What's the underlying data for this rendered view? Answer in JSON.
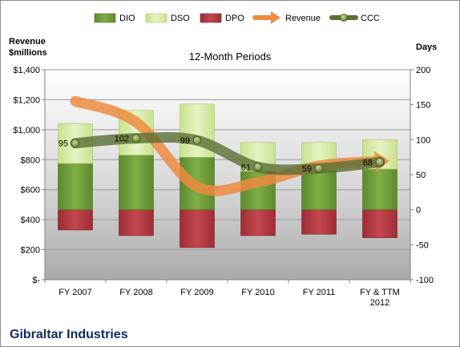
{
  "chart_data": {
    "type": "bar",
    "title": "12-Month Periods",
    "company": "Gibraltar Industries",
    "ylabel_left_line1": "Revenue",
    "ylabel_left_line2": "$millions",
    "ylabel_right": "Days",
    "categories": [
      "FY 2007",
      "FY 2008",
      "FY 2009",
      "FY 2010",
      "FY 2011",
      "FY & TTM 2012"
    ],
    "categories_display": [
      [
        "FY 2007"
      ],
      [
        "FY 2008"
      ],
      [
        "FY 2009"
      ],
      [
        "FY 2010"
      ],
      [
        "FY 2011"
      ],
      [
        "FY & TTM",
        "2012"
      ]
    ],
    "left_axis": {
      "min": 0,
      "max": 1400,
      "step": 200,
      "tick_labels": [
        "$-",
        "$200",
        "$400",
        "$600",
        "$800",
        "$1,000",
        "$1,200",
        "$1,400"
      ]
    },
    "right_axis": {
      "min": -100,
      "max": 200,
      "step": 50,
      "tick_labels": [
        "-100",
        "-50",
        "0",
        "50",
        "100",
        "150",
        "200"
      ]
    },
    "grid": true,
    "legend_position": "top",
    "series": [
      {
        "name": "DIO",
        "type": "stacked-bar",
        "axis": "right",
        "color": "#6a9a3a",
        "values": [
          66,
          78,
          75,
          55,
          57,
          58
        ]
      },
      {
        "name": "DSO",
        "type": "stacked-bar",
        "axis": "right",
        "color": "#d6eaa6",
        "values": [
          57,
          64,
          76,
          41,
          39,
          42
        ]
      },
      {
        "name": "DPO",
        "type": "bar-negative",
        "axis": "right",
        "color": "#b63a42",
        "values": [
          -29,
          -37,
          -54,
          -37,
          -35,
          -40
        ]
      },
      {
        "name": "Revenue",
        "type": "line",
        "axis": "left",
        "color": "#ed8b3f",
        "values": [
          1190,
          1050,
          620,
          650,
          760,
          790
        ]
      },
      {
        "name": "CCC",
        "type": "line",
        "axis": "right",
        "color": "#5b6e34",
        "values": [
          95,
          102,
          99,
          61,
          59,
          68
        ],
        "data_labels": [
          "95",
          "102",
          "99",
          "61",
          "59",
          "68"
        ]
      }
    ]
  }
}
